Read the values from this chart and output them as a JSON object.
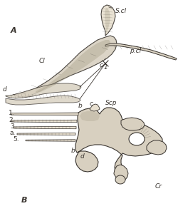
{
  "bg_color": "#ffffff",
  "line_color": "#3a3530",
  "bone_fill": "#d8d0c0",
  "bone_dark": "#a09880",
  "bone_light": "#e8e0d0",
  "title_A": "A",
  "title_B": "B",
  "labels": {
    "S_cl": "S.cl",
    "Cl": "Cl",
    "p_cl": "p.cl",
    "c": "c",
    "i": "1",
    "d": "d",
    "b_top": "b",
    "c_top": "c",
    "Scp": "Scp",
    "num1": "1.",
    "num2": "2.",
    "num3": "3.",
    "a": "a.",
    "num5": "5.",
    "b_bot": "b",
    "d_bot": "d",
    "Cr": "Cr"
  },
  "font_size": 6.5,
  "label_font_size": 8
}
